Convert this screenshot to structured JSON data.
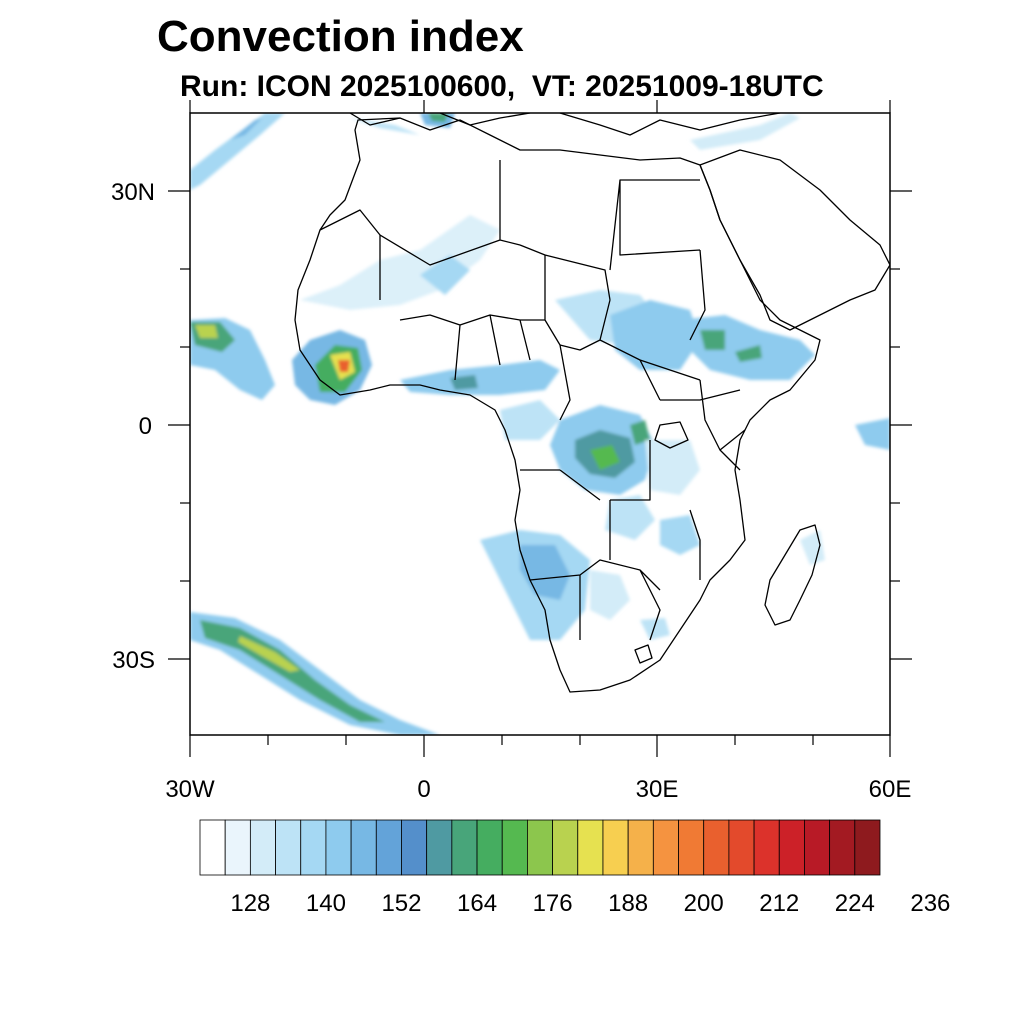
{
  "title": "Convection index",
  "subtitle": "Run: ICON 2025100600,  VT: 20251009-18UTC",
  "map": {
    "lon_range": [
      -30,
      60
    ],
    "lat_range": [
      -40,
      40
    ],
    "lon_ticks": [
      {
        "value": -30,
        "label": "30W"
      },
      {
        "value": 0,
        "label": "0"
      },
      {
        "value": 30,
        "label": "30E"
      },
      {
        "value": 60,
        "label": "60E"
      }
    ],
    "lat_ticks": [
      {
        "value": 30,
        "label": "30N"
      },
      {
        "value": 0,
        "label": "0"
      },
      {
        "value": -30,
        "label": "30S"
      }
    ]
  },
  "colorbar": {
    "colors": [
      "#ffffff",
      "#eaf5fc",
      "#d3ecf8",
      "#bde3f6",
      "#a5d8f3",
      "#8ecbee",
      "#77b8e4",
      "#63a3d9",
      "#548fcb",
      "#4f9aa2",
      "#48a57a",
      "#45ad60",
      "#55b950",
      "#8cc64d",
      "#b9d24f",
      "#e6e150",
      "#f7cf50",
      "#f5b14a",
      "#f59340",
      "#f07a34",
      "#e9602e",
      "#e34a2c",
      "#dc322b",
      "#cc2128",
      "#b81a26",
      "#a31a22",
      "#8e1a1e"
    ],
    "labels": [
      "128",
      "140",
      "152",
      "164",
      "176",
      "188",
      "200",
      "212",
      "224",
      "236"
    ]
  }
}
